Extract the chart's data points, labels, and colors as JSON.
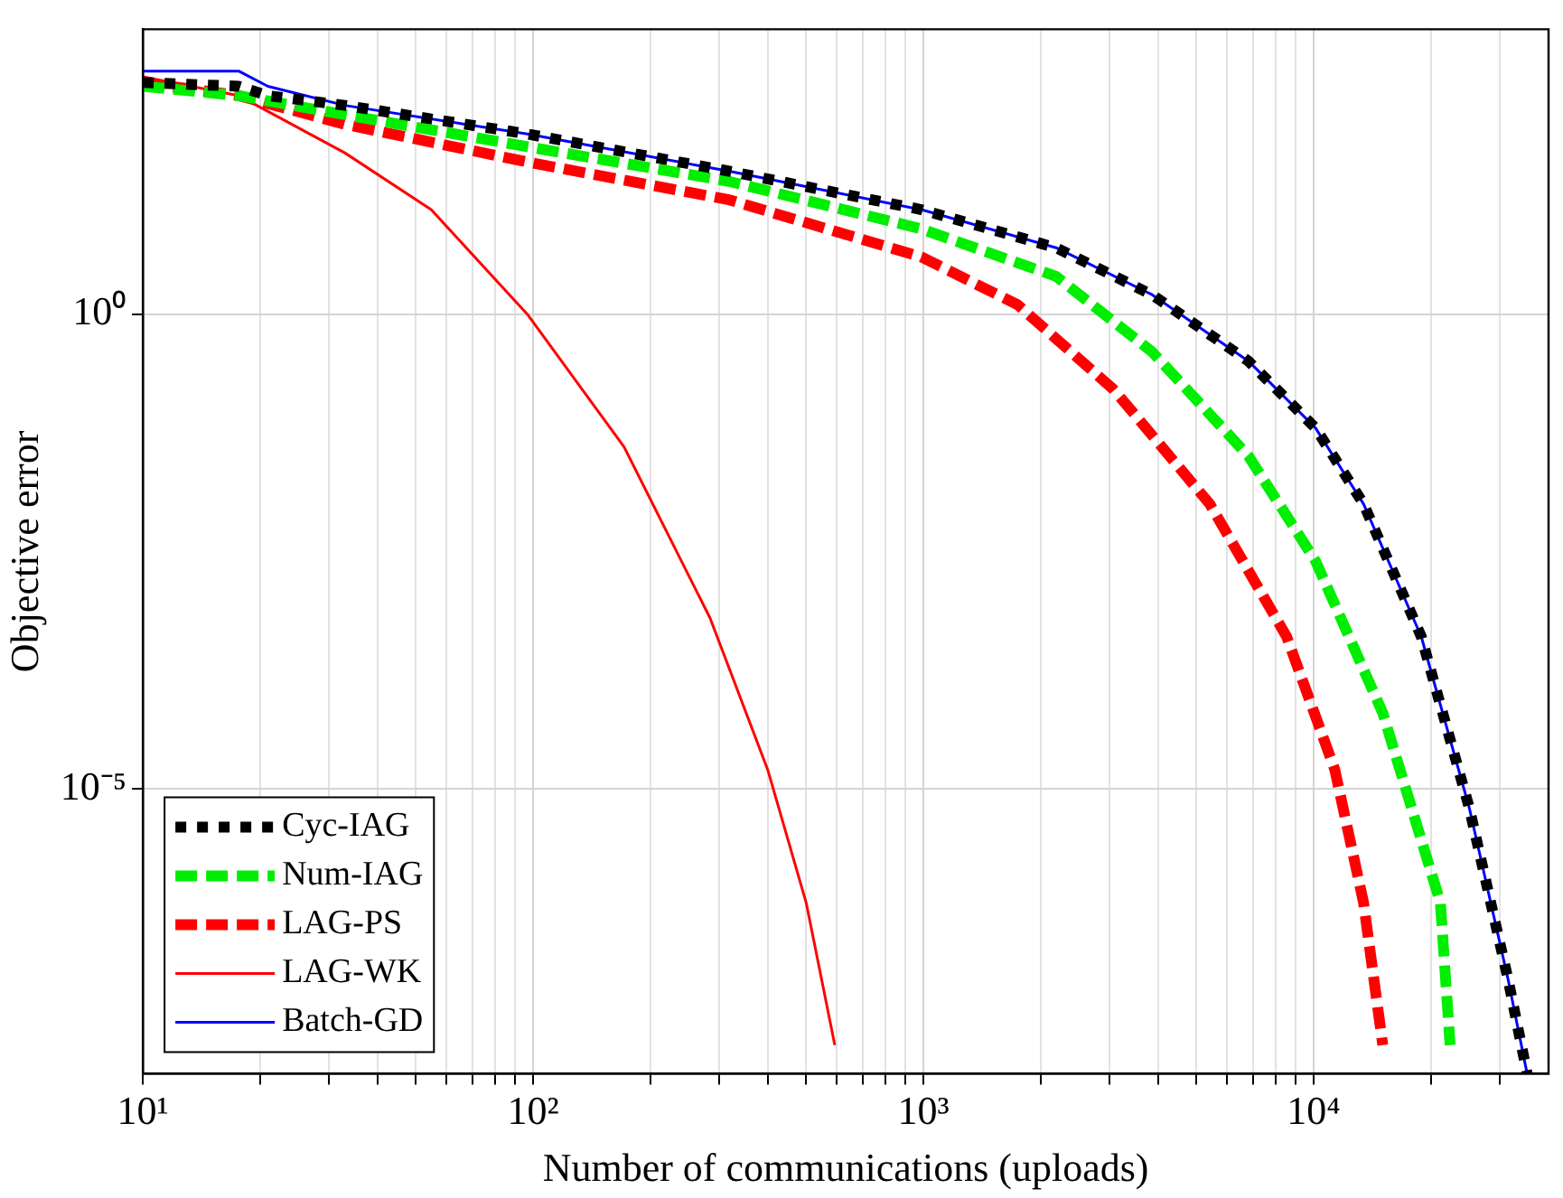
{
  "chart_data": {
    "type": "line",
    "xlabel": "Number of communications (uploads)",
    "ylabel": "Objective error",
    "log": "xy",
    "xlim": [
      10,
      40000
    ],
    "ylim": [
      1e-08,
      1000
    ],
    "xticks": [
      {
        "value": 10,
        "label": "10¹"
      },
      {
        "value": 20,
        "label": null
      },
      {
        "value": 30,
        "label": null
      },
      {
        "value": 40,
        "label": null
      },
      {
        "value": 50,
        "label": null
      },
      {
        "value": 60,
        "label": null
      },
      {
        "value": 70,
        "label": null
      },
      {
        "value": 80,
        "label": null
      },
      {
        "value": 90,
        "label": null
      },
      {
        "value": 100,
        "label": "10²"
      },
      {
        "value": 200,
        "label": null
      },
      {
        "value": 300,
        "label": null
      },
      {
        "value": 400,
        "label": null
      },
      {
        "value": 500,
        "label": null
      },
      {
        "value": 600,
        "label": null
      },
      {
        "value": 700,
        "label": null
      },
      {
        "value": 800,
        "label": null
      },
      {
        "value": 900,
        "label": null
      },
      {
        "value": 1000,
        "label": "10³"
      },
      {
        "value": 2000,
        "label": null
      },
      {
        "value": 3000,
        "label": null
      },
      {
        "value": 4000,
        "label": null
      },
      {
        "value": 5000,
        "label": null
      },
      {
        "value": 6000,
        "label": null
      },
      {
        "value": 7000,
        "label": null
      },
      {
        "value": 8000,
        "label": null
      },
      {
        "value": 9000,
        "label": null
      },
      {
        "value": 10000,
        "label": "10⁴"
      },
      {
        "value": 20000,
        "label": null
      },
      {
        "value": 30000,
        "label": null
      }
    ],
    "yticks": [
      {
        "value": 1e-05,
        "label": "10⁻⁵"
      },
      {
        "value": 1,
        "label": "10⁰"
      }
    ],
    "grid": true,
    "legend": "bottom left",
    "marker": "none",
    "series": [
      {
        "name": "Cyc-IAG",
        "color": "#000000",
        "line_style": "dotted",
        "x": [
          10,
          17.6,
          20.9,
          32.9,
          96.6,
          318,
          988,
          2188,
          3857,
          6808,
          10120,
          13430,
          18880,
          25060,
          31480,
          35250
        ],
        "values": [
          275,
          251,
          200,
          158,
          79,
          32,
          12.6,
          5,
          1.6,
          0.32,
          0.063,
          0.01,
          0.0004,
          6.3e-06,
          1e-07,
          1e-08
        ]
      },
      {
        "name": "Num-IAG",
        "color": "#00ee00",
        "line_style": "dashed",
        "x": [
          10,
          17.6,
          32.9,
          96.6,
          318,
          988,
          2188,
          3857,
          6808,
          10120,
          15040,
          21130,
          22380
        ],
        "values": [
          251,
          200,
          126,
          58,
          25,
          7.9,
          2.5,
          0.4,
          0.032,
          0.0025,
          6.3e-05,
          6.3e-07,
          2e-08
        ]
      },
      {
        "name": "LAG-PS",
        "color": "#ff0000",
        "line_style": "dashed",
        "x": [
          10,
          17.6,
          32.9,
          96.6,
          318,
          988,
          1742,
          3076,
          5420,
          8531,
          11330,
          13430,
          15040
        ],
        "values": [
          275,
          200,
          100,
          40,
          16,
          4,
          1.26,
          0.16,
          0.01,
          0.0004,
          1.6e-05,
          6.3e-07,
          2e-08
        ]
      },
      {
        "name": "LAG-WK",
        "color": "#ff0000",
        "line_style": "solid",
        "x": [
          10,
          17.6,
          32.9,
          54.8,
          96.6,
          171,
          284,
          399,
          501,
          593
        ],
        "values": [
          316,
          200,
          50,
          12.6,
          1,
          0.04,
          0.00063,
          1.6e-05,
          6.3e-07,
          2e-08
        ]
      },
      {
        "name": "Batch-GD",
        "color": "#0000ff",
        "line_style": "solid",
        "x": [
          10,
          17.6,
          20.9,
          32.9,
          96.6,
          318,
          988,
          2188,
          3857,
          6808,
          10120,
          13430,
          18880,
          25060,
          31480,
          35250
        ],
        "values": [
          363,
          363,
          251,
          158,
          79,
          32,
          12.6,
          5,
          1.6,
          0.32,
          0.063,
          0.01,
          0.0004,
          6.3e-06,
          1e-07,
          1e-08
        ]
      }
    ]
  }
}
